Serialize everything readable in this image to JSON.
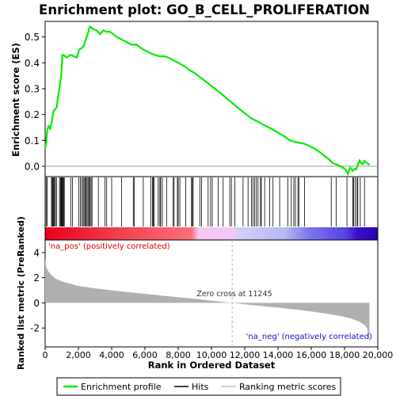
{
  "chart_data": {
    "type": "line",
    "title": "Enrichment plot: GO_B_CELL_PROLIFERATION",
    "xlabel": "Rank in Ordered Dataset",
    "xlim": [
      0,
      20000
    ],
    "x_ticks": [
      "0",
      "2,000",
      "4,000",
      "6,000",
      "8,000",
      "10,000",
      "12,000",
      "14,000",
      "16,000",
      "18,000",
      "20,000"
    ],
    "x_tick_values": [
      0,
      2000,
      4000,
      6000,
      8000,
      10000,
      12000,
      14000,
      16000,
      18000,
      20000
    ],
    "top_panel": {
      "ylabel": "Enrichment score (ES)",
      "ylim": [
        -0.04,
        0.56
      ],
      "y_ticks": [
        "0.0",
        "0.1",
        "0.2",
        "0.3",
        "0.4",
        "0.5"
      ],
      "y_tick_values": [
        0.0,
        0.1,
        0.2,
        0.3,
        0.4,
        0.5
      ],
      "series": [
        {
          "name": "Enrichment profile",
          "color": "#00ee00",
          "x": [
            0,
            60,
            130,
            200,
            300,
            400,
            460,
            520,
            600,
            700,
            800,
            860,
            920,
            980,
            1040,
            1100,
            1300,
            1500,
            1620,
            1700,
            1900,
            2000,
            2050,
            2150,
            2250,
            2350,
            2400,
            2450,
            2500,
            2550,
            2600,
            2650,
            2700,
            2800,
            2900,
            3100,
            3300,
            3500,
            3700,
            3900,
            4100,
            4300,
            4600,
            4900,
            5200,
            5500,
            5800,
            6100,
            6400,
            6600,
            6900,
            7200,
            7400,
            7700,
            8000,
            8300,
            8600,
            9000,
            9400,
            9800,
            10200,
            10600,
            11000,
            11245,
            11600,
            12000,
            12400,
            12800,
            13200,
            13600,
            14000,
            14400,
            14700,
            15000,
            15300,
            15600,
            15900,
            16200,
            16500,
            16800,
            17100,
            17300,
            17600,
            17900,
            18100,
            18200,
            18350,
            18500,
            18600,
            18700,
            18800,
            18900,
            19000,
            19100,
            19200,
            19300,
            19400,
            19500
          ],
          "y": [
            0.07,
            0.09,
            0.14,
            0.155,
            0.145,
            0.17,
            0.2,
            0.215,
            0.22,
            0.23,
            0.28,
            0.3,
            0.33,
            0.36,
            0.43,
            0.43,
            0.42,
            0.43,
            0.43,
            0.425,
            0.42,
            0.44,
            0.45,
            0.455,
            0.46,
            0.47,
            0.48,
            0.49,
            0.5,
            0.51,
            0.52,
            0.535,
            0.54,
            0.535,
            0.53,
            0.525,
            0.51,
            0.525,
            0.52,
            0.52,
            0.51,
            0.5,
            0.49,
            0.48,
            0.47,
            0.47,
            0.455,
            0.445,
            0.435,
            0.43,
            0.425,
            0.425,
            0.42,
            0.41,
            0.4,
            0.39,
            0.375,
            0.36,
            0.34,
            0.32,
            0.3,
            0.28,
            0.258,
            0.245,
            0.225,
            0.205,
            0.185,
            0.172,
            0.158,
            0.145,
            0.13,
            0.115,
            0.1,
            0.095,
            0.09,
            0.087,
            0.078,
            0.068,
            0.055,
            0.04,
            0.025,
            0.012,
            0.005,
            -0.005,
            -0.015,
            -0.03,
            -0.005,
            -0.018,
            -0.01,
            -0.012,
            0.005,
            0.022,
            0.012,
            0.008,
            0.02,
            0.015,
            0.01,
            0.005
          ]
        }
      ]
    },
    "hits": [
      60,
      130,
      380,
      430,
      470,
      520,
      560,
      620,
      680,
      860,
      920,
      960,
      1000,
      1040,
      1080,
      1120,
      1150,
      1540,
      1640,
      2020,
      2120,
      2200,
      2280,
      2340,
      2400,
      2460,
      2520,
      2580,
      2640,
      2700,
      2760,
      2820,
      3200,
      3600,
      3700,
      4000,
      4600,
      5300,
      5350,
      5900,
      6350,
      6450,
      6500,
      6550,
      6800,
      6900,
      6950,
      7050,
      7300,
      7700,
      7750,
      7950,
      8000,
      8100,
      8450,
      8800,
      8850,
      8900,
      9300,
      9400,
      9800,
      9950,
      10050,
      10400,
      10700,
      11100,
      11200,
      11400,
      11900,
      12200,
      12400,
      12500,
      12600,
      12700,
      12800,
      12950,
      13000,
      13200,
      13500,
      13700,
      14100,
      14600,
      14800,
      14950,
      15050,
      15200,
      15250,
      15600,
      17200,
      17500,
      18150,
      18500,
      18550,
      18650,
      18750,
      18800,
      18950,
      19200
    ],
    "ranked_metric": {
      "ylabel": "Ranked list metric (PreRanked)",
      "ylim": [
        -3.5,
        5.0
      ],
      "y_ticks": [
        "4",
        "2",
        "0",
        "-2"
      ],
      "y_tick_values": [
        4,
        2,
        0,
        -2
      ],
      "x": [
        0,
        50,
        150,
        300,
        600,
        1000,
        2000,
        3000,
        4000,
        5000,
        6000,
        7000,
        8000,
        9000,
        10000,
        11000,
        11245,
        12000,
        13000,
        14000,
        15000,
        16000,
        17000,
        17800,
        18400,
        18900,
        19200,
        19350,
        19450,
        19500
      ],
      "y": [
        3.6,
        2.9,
        2.6,
        2.3,
        1.95,
        1.7,
        1.35,
        1.15,
        1.0,
        0.85,
        0.72,
        0.58,
        0.45,
        0.32,
        0.18,
        0.03,
        0.0,
        -0.12,
        -0.25,
        -0.38,
        -0.52,
        -0.68,
        -0.88,
        -1.05,
        -1.25,
        -1.5,
        -1.75,
        -2.0,
        -2.6,
        -3.4
      ],
      "fill_color": "#b0b0b0"
    },
    "annotations": {
      "pos_label": "'na_pos' (positively correlated)",
      "neg_label": "'na_neg' (negatively correlated)",
      "zero_cross": "Zero cross at 11245",
      "zero_cross_value": 11245
    },
    "legend": {
      "placement": "bottom",
      "entries": [
        {
          "label": "Enrichment profile",
          "color": "#00ee00"
        },
        {
          "label": "Hits",
          "color": "#000000"
        },
        {
          "label": "Ranking metric scores",
          "color": "#c0c0c0"
        }
      ]
    }
  }
}
